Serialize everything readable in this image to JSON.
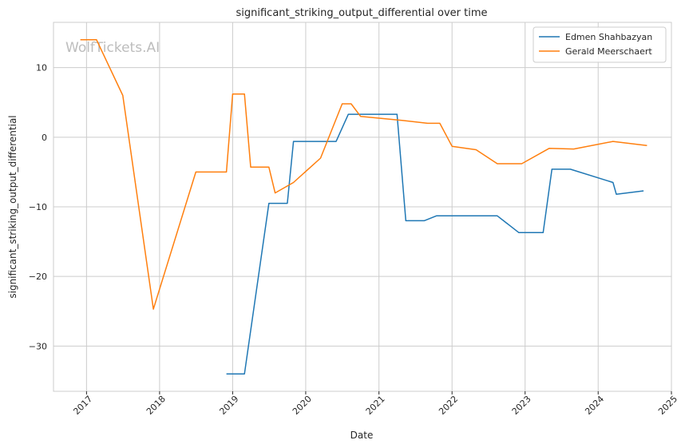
{
  "chart_data": {
    "type": "line",
    "title": "significant_striking_output_differential over time",
    "xlabel": "Date",
    "ylabel": "significant_striking_output_differential",
    "watermark": "WolfTickets.AI",
    "xlim": [
      "2016-07-20",
      "2025-01-01"
    ],
    "ylim": [
      -36.5,
      16.5
    ],
    "x_ticks": [
      "2017",
      "2018",
      "2019",
      "2020",
      "2021",
      "2022",
      "2023",
      "2024",
      "2025"
    ],
    "y_ticks": [
      10,
      0,
      -10,
      -20,
      -30
    ],
    "grid": true,
    "legend_position": "top-right",
    "series": [
      {
        "name": "Edmen Shahbazyan",
        "color": "#1f77b4",
        "points": [
          [
            "2018-12-01",
            -34.0
          ],
          [
            "2019-03-01",
            -34.0
          ],
          [
            "2019-07-01",
            -9.5
          ],
          [
            "2019-10-01",
            -9.5
          ],
          [
            "2019-11-01",
            -0.6
          ],
          [
            "2020-06-01",
            -0.6
          ],
          [
            "2020-08-01",
            3.3
          ],
          [
            "2021-04-01",
            3.3
          ],
          [
            "2021-05-15",
            -12.0
          ],
          [
            "2021-08-15",
            -12.0
          ],
          [
            "2021-10-15",
            -11.3
          ],
          [
            "2022-08-15",
            -11.3
          ],
          [
            "2022-12-01",
            -13.7
          ],
          [
            "2023-04-01",
            -13.7
          ],
          [
            "2023-05-15",
            -4.6
          ],
          [
            "2023-08-15",
            -4.6
          ],
          [
            "2024-03-15",
            -6.5
          ],
          [
            "2024-04-01",
            -8.2
          ],
          [
            "2024-08-15",
            -7.7
          ]
        ]
      },
      {
        "name": "Gerald Meerschaert",
        "color": "#ff7f0e",
        "points": [
          [
            "2016-12-01",
            14.0
          ],
          [
            "2017-02-20",
            14.0
          ],
          [
            "2017-07-01",
            6.0
          ],
          [
            "2017-12-01",
            -24.7
          ],
          [
            "2018-07-01",
            -5.0
          ],
          [
            "2018-12-01",
            -5.0
          ],
          [
            "2019-01-01",
            6.2
          ],
          [
            "2019-03-01",
            6.2
          ],
          [
            "2019-04-01",
            -4.3
          ],
          [
            "2019-07-01",
            -4.3
          ],
          [
            "2019-08-01",
            -8.0
          ],
          [
            "2019-11-01",
            -6.5
          ],
          [
            "2020-03-15",
            -3.0
          ],
          [
            "2020-07-01",
            4.8
          ],
          [
            "2020-08-15",
            4.8
          ],
          [
            "2020-10-01",
            3.0
          ],
          [
            "2021-05-01",
            2.4
          ],
          [
            "2021-09-01",
            2.0
          ],
          [
            "2021-11-01",
            2.0
          ],
          [
            "2022-01-01",
            -1.3
          ],
          [
            "2022-05-01",
            -1.8
          ],
          [
            "2022-08-15",
            -3.8
          ],
          [
            "2022-12-15",
            -3.8
          ],
          [
            "2023-05-01",
            -1.6
          ],
          [
            "2023-09-01",
            -1.7
          ],
          [
            "2024-03-15",
            -0.6
          ],
          [
            "2024-09-01",
            -1.2
          ]
        ]
      }
    ]
  }
}
